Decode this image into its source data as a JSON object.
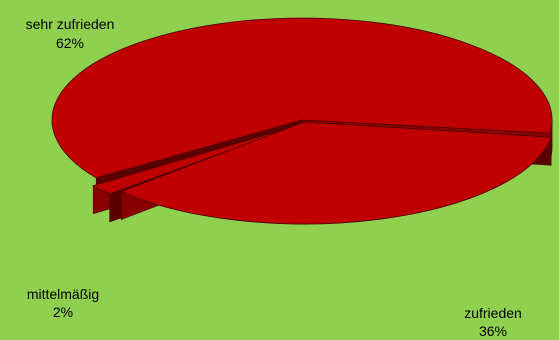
{
  "chart_data": {
    "type": "pie",
    "style": "3d-exploded",
    "title": "",
    "legend": "none",
    "slices": [
      {
        "label": "sehr zufrieden",
        "value": 62,
        "value_label": "62%"
      },
      {
        "label": "mittelmäßig",
        "value": 2,
        "value_label": "2%"
      },
      {
        "label": "zufrieden",
        "value": 36,
        "value_label": "36%"
      }
    ],
    "colors": {
      "background": "#8fd14f",
      "top": "#c00000",
      "side": "#8a0000",
      "side_dark": "#5a0000",
      "edge": "#4a0000"
    }
  }
}
